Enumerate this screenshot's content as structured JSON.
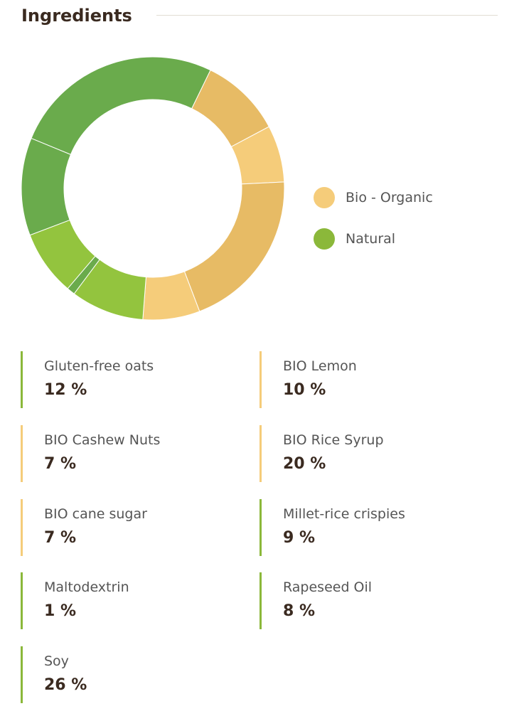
{
  "header": {
    "title": "Ingredients"
  },
  "colors": {
    "bio": "#f5cc7a",
    "natural": "#8bb83a",
    "rule": "#e2ddd3"
  },
  "legend": [
    {
      "label": "Bio - Organic",
      "color": "#f5cc7a"
    },
    {
      "label": "Natural",
      "color": "#8bb83a"
    }
  ],
  "ingredients": [
    {
      "name": "Gluten-free oats",
      "value": "12 %",
      "type": "natural"
    },
    {
      "name": "BIO Lemon",
      "value": "10 %",
      "type": "bio"
    },
    {
      "name": "BIO Cashew Nuts",
      "value": "7 %",
      "type": "bio"
    },
    {
      "name": "BIO Rice Syrup",
      "value": "20 %",
      "type": "bio"
    },
    {
      "name": "BIO cane sugar",
      "value": "7 %",
      "type": "bio"
    },
    {
      "name": "Millet-rice crispies",
      "value": "9 %",
      "type": "natural"
    },
    {
      "name": "Maltodextrin",
      "value": "1 %",
      "type": "natural"
    },
    {
      "name": "Rapeseed Oil",
      "value": "8 %",
      "type": "natural"
    },
    {
      "name": "Soy",
      "value": "26 %",
      "type": "natural"
    }
  ],
  "chart_data": {
    "type": "pie",
    "title": "",
    "legend_position": "right",
    "slices": [
      {
        "label": "Soy",
        "value": 26,
        "color": "#6aab4c"
      },
      {
        "label": "BIO Lemon",
        "value": 10,
        "color": "#e7bb65"
      },
      {
        "label": "BIO Cashew Nuts",
        "value": 7,
        "color": "#f5cc7a"
      },
      {
        "label": "BIO Rice Syrup",
        "value": 20,
        "color": "#e7bb65"
      },
      {
        "label": "BIO cane sugar",
        "value": 7,
        "color": "#f5cc7a"
      },
      {
        "label": "Millet-rice crispies",
        "value": 9,
        "color": "#93c43e"
      },
      {
        "label": "Maltodextrin",
        "value": 1,
        "color": "#6aab4c"
      },
      {
        "label": "Rapeseed Oil",
        "value": 8,
        "color": "#93c43e"
      },
      {
        "label": "Gluten-free oats",
        "value": 12,
        "color": "#6aab4c"
      }
    ]
  }
}
